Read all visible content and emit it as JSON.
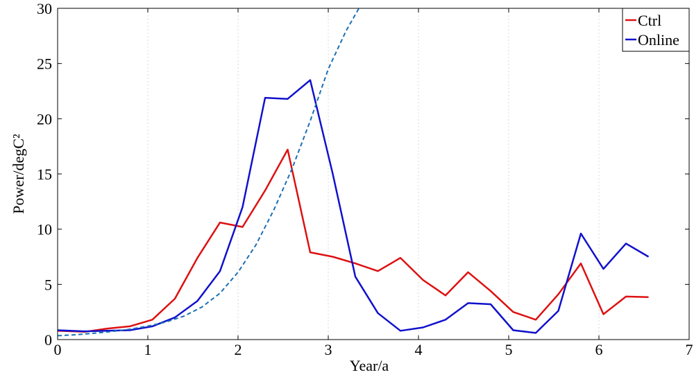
{
  "chart_data": {
    "type": "line",
    "xlabel": "Year/a",
    "ylabel": "Power/degC²",
    "xlim": [
      0,
      7
    ],
    "ylim": [
      0,
      30
    ],
    "xticks": [
      "0",
      "1",
      "2",
      "3",
      "4",
      "5",
      "6",
      "7"
    ],
    "yticks": [
      "0",
      "5",
      "10",
      "15",
      "20",
      "25",
      "30"
    ],
    "grid": "vertical dotted",
    "legend_position": "top-right",
    "series": [
      {
        "name": "Ctrl",
        "color": "#dd1111",
        "style": "solid",
        "x": [
          0,
          0.3,
          0.55,
          0.8,
          1.05,
          1.3,
          1.55,
          1.8,
          2.05,
          2.3,
          2.55,
          2.8,
          3.05,
          3.3,
          3.55,
          3.8,
          4.05,
          4.3,
          4.55,
          4.8,
          5.05,
          5.3,
          5.55,
          5.8,
          6.05,
          6.3,
          6.55
        ],
        "values": [
          0.8,
          0.7,
          1.0,
          1.2,
          1.8,
          3.7,
          7.4,
          10.6,
          10.2,
          13.5,
          17.2,
          7.9,
          7.5,
          6.9,
          6.2,
          7.4,
          5.4,
          4.0,
          6.1,
          4.4,
          2.5,
          1.8,
          4.1,
          6.9,
          2.3,
          3.9,
          3.85
        ]
      },
      {
        "name": "Online",
        "color": "#1111cc",
        "style": "solid",
        "x": [
          0,
          0.3,
          0.55,
          0.8,
          1.05,
          1.3,
          1.55,
          1.8,
          2.05,
          2.3,
          2.55,
          2.8,
          3.05,
          3.3,
          3.55,
          3.8,
          4.05,
          4.3,
          4.55,
          4.8,
          5.05,
          5.3,
          5.55,
          5.8,
          6.05,
          6.3,
          6.55
        ],
        "values": [
          0.85,
          0.75,
          0.8,
          0.85,
          1.2,
          2.0,
          3.5,
          6.2,
          12.0,
          21.9,
          21.8,
          23.5,
          15.0,
          5.7,
          2.4,
          0.8,
          1.1,
          1.8,
          3.3,
          3.2,
          0.85,
          0.6,
          2.6,
          9.6,
          6.4,
          8.7,
          7.5
        ]
      },
      {
        "color": "#1a6fb5",
        "style": "dashed",
        "x": [
          0,
          0.2,
          0.4,
          0.6,
          0.8,
          1.0,
          1.2,
          1.4,
          1.6,
          1.8,
          2.0,
          2.2,
          2.4,
          2.6,
          2.8,
          3.0,
          3.2,
          3.34
        ],
        "values": [
          0.35,
          0.44,
          0.57,
          0.73,
          0.94,
          1.22,
          1.59,
          2.12,
          2.95,
          4.2,
          6.1,
          8.6,
          11.8,
          15.5,
          19.8,
          24.5,
          28.0,
          30.0
        ]
      }
    ]
  }
}
